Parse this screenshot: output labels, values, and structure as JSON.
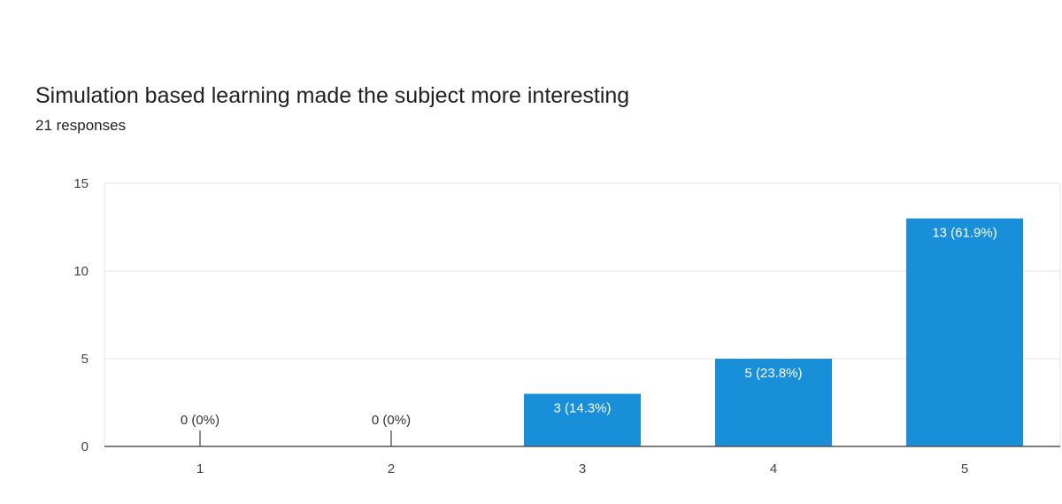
{
  "header": {
    "title": "Simulation based learning made the subject more interesting",
    "subtitle": "21 responses"
  },
  "chart_data": {
    "type": "bar",
    "categories": [
      "1",
      "2",
      "3",
      "4",
      "5"
    ],
    "values": [
      0,
      0,
      3,
      5,
      13
    ],
    "data_labels": [
      "0 (0%)",
      "0 (0%)",
      "3 (14.3%)",
      "5 (23.8%)",
      "13 (61.9%)"
    ],
    "title": "Simulation based learning made the subject more interesting",
    "subtitle": "21 responses",
    "xlabel": "",
    "ylabel": "",
    "ylim": [
      0,
      15
    ],
    "yticks": [
      0,
      5,
      10,
      15
    ],
    "grid": true,
    "bar_color": "#1a8fd9",
    "zero_label_color": "#333333",
    "inner_label_color": "#ffffff"
  }
}
